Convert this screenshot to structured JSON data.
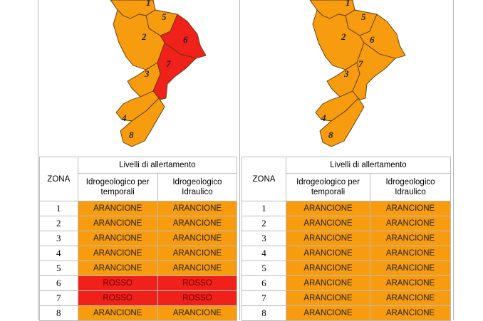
{
  "colors": {
    "arancione": "#f79b0f",
    "rosso": "#f0201a",
    "border": "#5a3b0a"
  },
  "left": {
    "map_labels": [
      "1",
      "2",
      "3",
      "4",
      "5",
      "6",
      "7",
      "8"
    ],
    "red_zones": [
      "6",
      "7"
    ],
    "table": {
      "zona_header": "ZONA",
      "group_header": "Livelli di allertamento",
      "col1_header": "Idrogeologico per temporali",
      "col2_header": "Idrogeologico Idraulico",
      "rows": [
        {
          "zona": "1",
          "temporali": "ARANCIONE",
          "idraulico": "ARANCIONE",
          "level": "arancione"
        },
        {
          "zona": "2",
          "temporali": "ARANCIONE",
          "idraulico": "ARANCIONE",
          "level": "arancione"
        },
        {
          "zona": "3",
          "temporali": "ARANCIONE",
          "idraulico": "ARANCIONE",
          "level": "arancione"
        },
        {
          "zona": "4",
          "temporali": "ARANCIONE",
          "idraulico": "ARANCIONE",
          "level": "arancione"
        },
        {
          "zona": "5",
          "temporali": "ARANCIONE",
          "idraulico": "ARANCIONE",
          "level": "arancione"
        },
        {
          "zona": "6",
          "temporali": "ROSSO",
          "idraulico": "ROSSO",
          "level": "rosso"
        },
        {
          "zona": "7",
          "temporali": "ROSSO",
          "idraulico": "ROSSO",
          "level": "rosso"
        },
        {
          "zona": "8",
          "temporali": "ARANCIONE",
          "idraulico": "ARANCIONE",
          "level": "arancione"
        }
      ]
    }
  },
  "right": {
    "map_labels": [
      "1",
      "2",
      "3",
      "4",
      "5",
      "6",
      "7",
      "8"
    ],
    "red_zones": [],
    "table": {
      "zona_header": "ZONA",
      "group_header": "Livelli di allertamento",
      "col1_header": "Idrogeologico per temporali",
      "col2_header": "Idrogeologico Idraulico",
      "rows": [
        {
          "zona": "1",
          "temporali": "ARANCIONE",
          "idraulico": "ARANCIONE",
          "level": "arancione"
        },
        {
          "zona": "2",
          "temporali": "ARANCIONE",
          "idraulico": "ARANCIONE",
          "level": "arancione"
        },
        {
          "zona": "3",
          "temporali": "ARANCIONE",
          "idraulico": "ARANCIONE",
          "level": "arancione"
        },
        {
          "zona": "4",
          "temporali": "ARANCIONE",
          "idraulico": "ARANCIONE",
          "level": "arancione"
        },
        {
          "zona": "5",
          "temporali": "ARANCIONE",
          "idraulico": "ARANCIONE",
          "level": "arancione"
        },
        {
          "zona": "6",
          "temporali": "ARANCIONE",
          "idraulico": "ARANCIONE",
          "level": "arancione"
        },
        {
          "zona": "7",
          "temporali": "ARANCIONE",
          "idraulico": "ARANCIONE",
          "level": "arancione"
        },
        {
          "zona": "8",
          "temporali": "ARANCIONE",
          "idraulico": "ARANCIONE",
          "level": "arancione"
        }
      ]
    }
  }
}
